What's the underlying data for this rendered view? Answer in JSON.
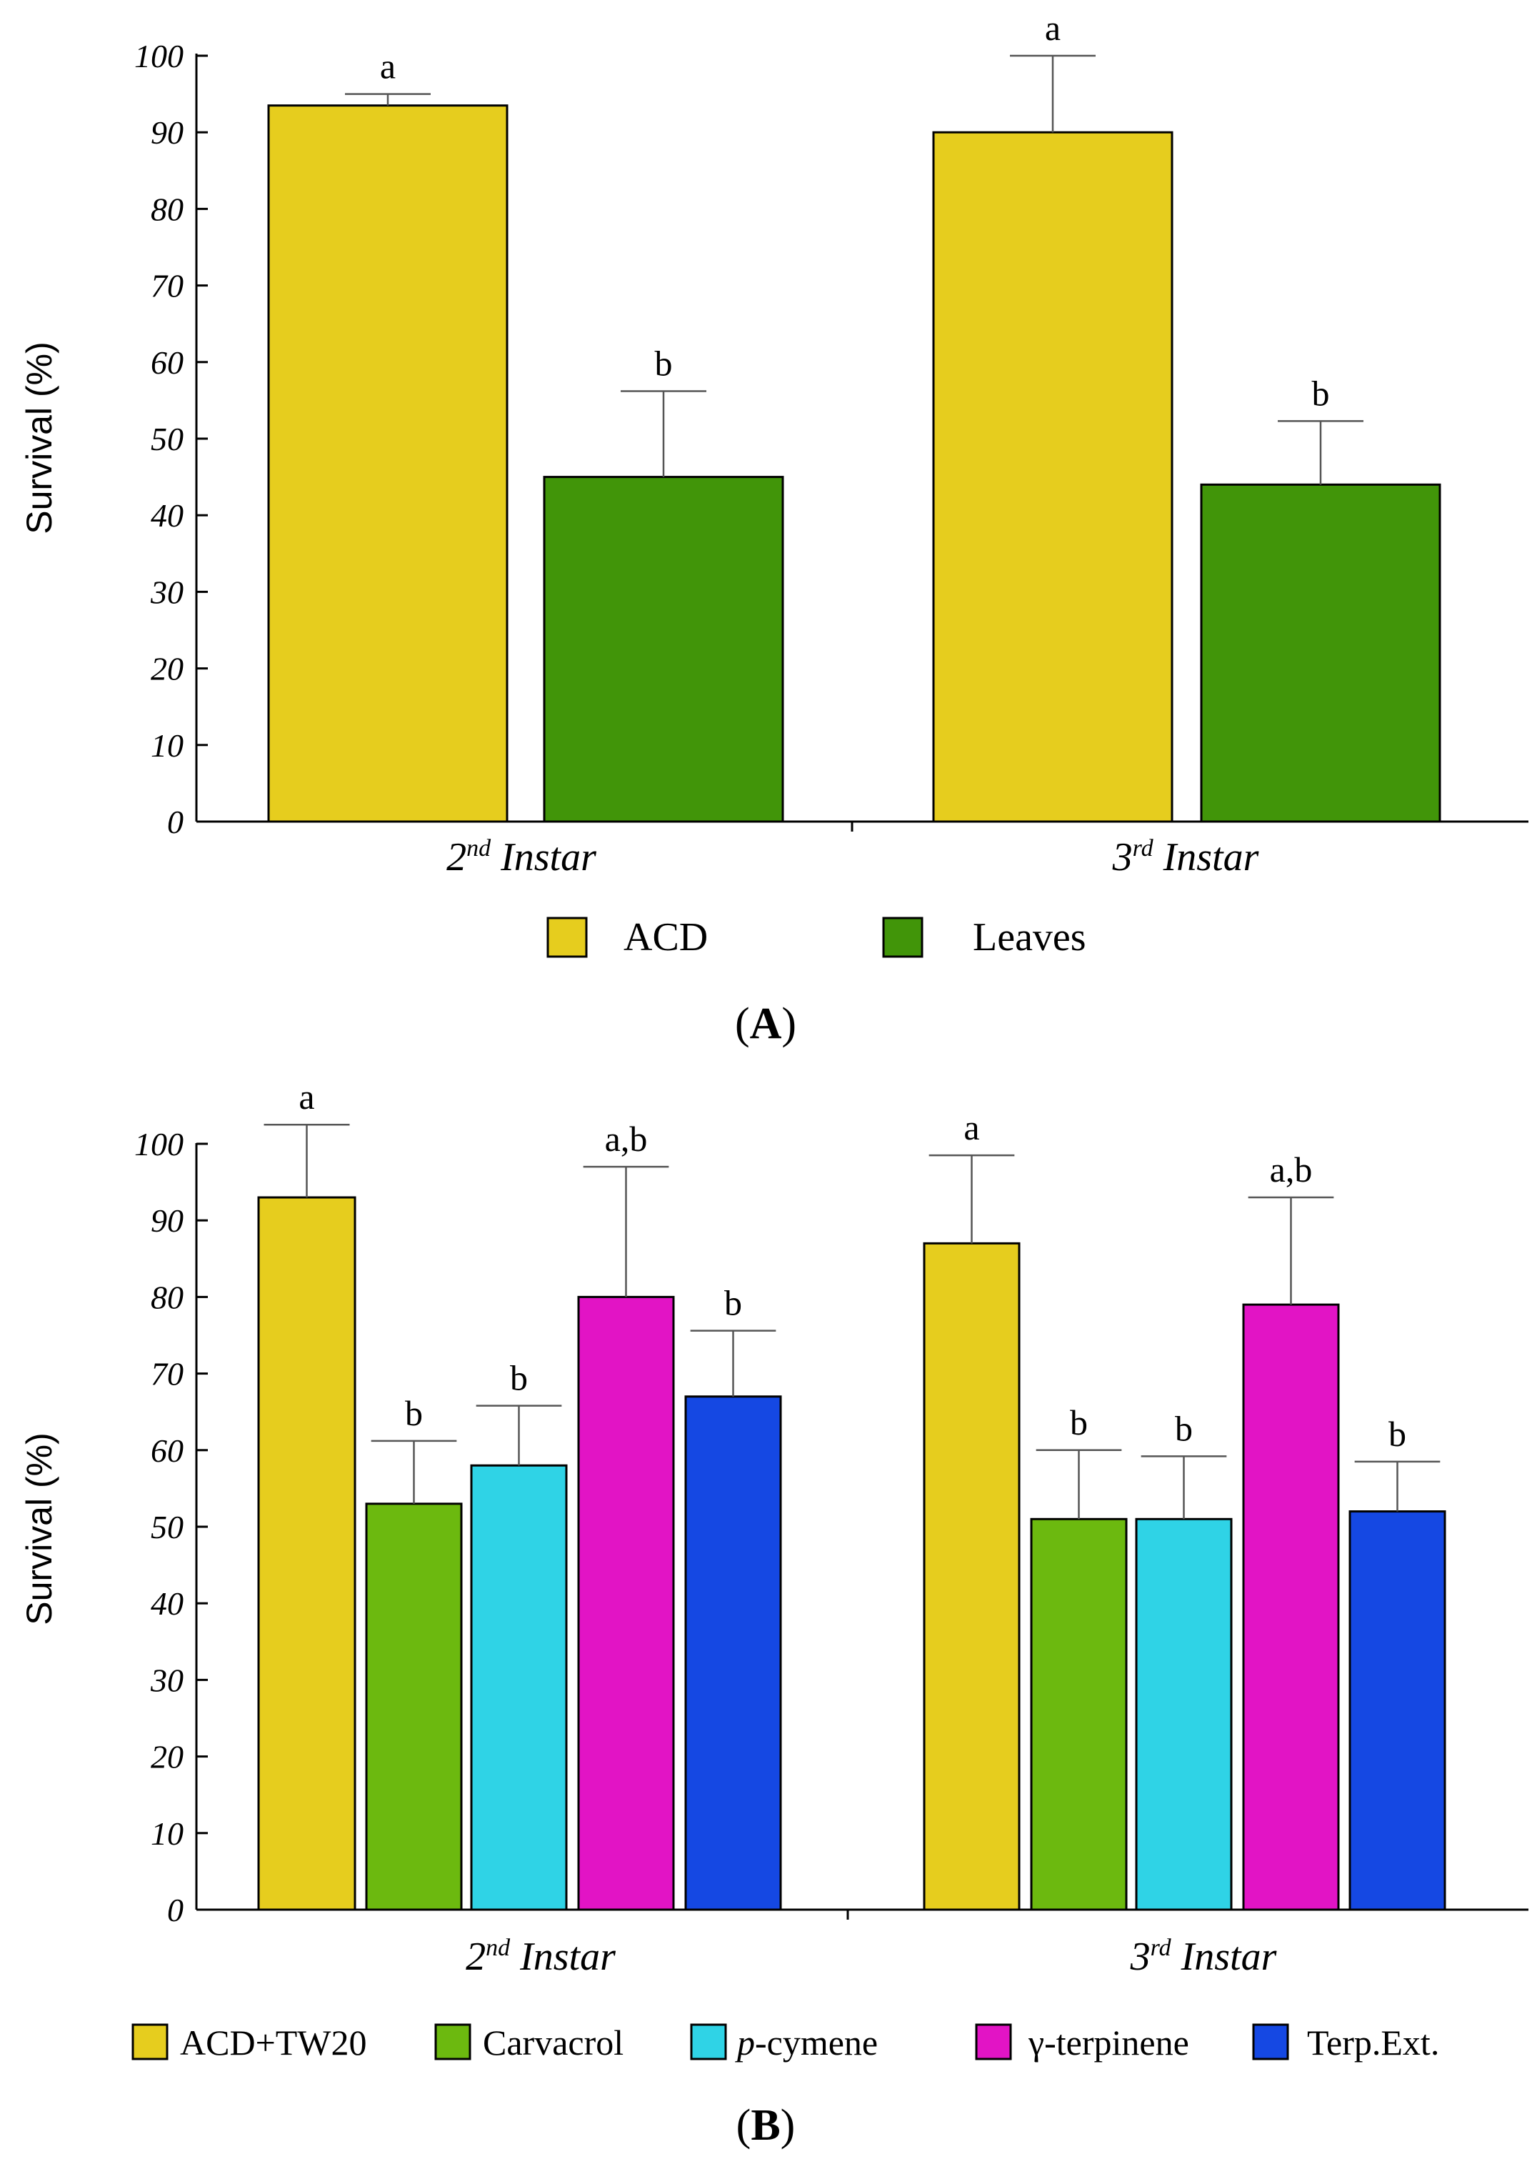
{
  "chart_data": [
    {
      "type": "bar",
      "panel_label": "A",
      "ylabel": "Survival (%)",
      "ylim": [
        0,
        100
      ],
      "yticks": [
        "0",
        "10",
        "20",
        "30",
        "40",
        "50",
        "60",
        "70",
        "80",
        "90",
        "100"
      ],
      "categories": [
        {
          "ordinal": "2",
          "suffix": "nd",
          "word": "Instar"
        },
        {
          "ordinal": "3",
          "suffix": "rd",
          "word": "Instar"
        }
      ],
      "series": [
        {
          "name": "ACD",
          "color": "#e6cd1e",
          "values": [
            93.5,
            90
          ],
          "errors": [
            1.5,
            10
          ],
          "letters": [
            "a",
            "a"
          ]
        },
        {
          "name": "Leaves",
          "color": "#419509",
          "values": [
            45,
            44
          ],
          "errors": [
            11.2,
            8.3
          ],
          "letters": [
            "b",
            "b"
          ]
        }
      ],
      "legend": [
        "ACD",
        "Leaves"
      ]
    },
    {
      "type": "bar",
      "panel_label": "B",
      "ylabel": "Survival (%)",
      "ylim": [
        0,
        100
      ],
      "yticks": [
        "0",
        "10",
        "20",
        "30",
        "40",
        "50",
        "60",
        "70",
        "80",
        "90",
        "100"
      ],
      "categories": [
        {
          "ordinal": "2",
          "suffix": "nd",
          "word": "Instar"
        },
        {
          "ordinal": "3",
          "suffix": "rd",
          "word": "Instar"
        }
      ],
      "series": [
        {
          "name": "ACD+TW20",
          "color": "#e6cd1e",
          "values": [
            93,
            87
          ],
          "errors": [
            9.5,
            11.5
          ],
          "letters": [
            "a",
            "a"
          ]
        },
        {
          "name": "Carvacrol",
          "color": "#6cb90f",
          "values": [
            53,
            51
          ],
          "errors": [
            8.2,
            9
          ],
          "letters": [
            "b",
            "b"
          ]
        },
        {
          "name": "p-cymene",
          "color": "#2fd3e6",
          "values": [
            58,
            51
          ],
          "errors": [
            7.8,
            8.2
          ],
          "letters": [
            "b",
            "b"
          ]
        },
        {
          "name": "γ-terpinene",
          "color": "#e214c5",
          "values": [
            80,
            79
          ],
          "errors": [
            17,
            14
          ],
          "letters": [
            "a,b",
            "a,b"
          ]
        },
        {
          "name": "Terp.Ext.",
          "color": "#1548e3",
          "values": [
            67,
            52
          ],
          "errors": [
            8.6,
            6.5
          ],
          "letters": [
            "b",
            "b"
          ]
        }
      ],
      "legend": [
        {
          "prefix": "",
          "italic": "",
          "rest": "ACD+TW20"
        },
        {
          "prefix": "",
          "italic": "",
          "rest": "Carvacrol"
        },
        {
          "prefix": "",
          "italic": "p",
          "rest": "-cymene"
        },
        {
          "prefix": "",
          "italic": "",
          "rest": "γ-terpinene"
        },
        {
          "prefix": "",
          "italic": "",
          "rest": "Terp.Ext."
        }
      ]
    }
  ]
}
